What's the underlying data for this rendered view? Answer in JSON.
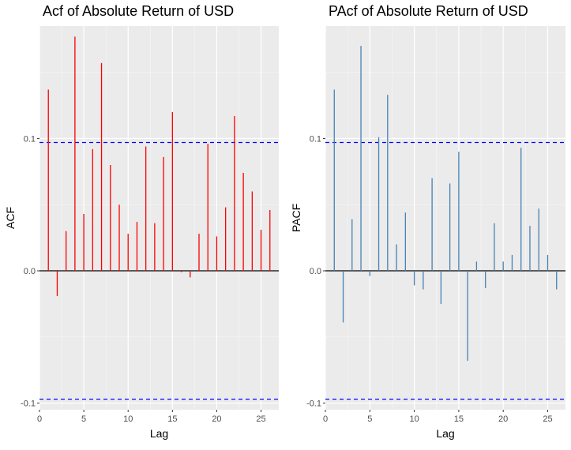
{
  "chart_data": [
    {
      "type": "bar",
      "title": "Acf of Absolute Return of USD",
      "xlabel": "Lag",
      "ylabel": "ACF",
      "xlim": [
        0,
        27
      ],
      "ylim": [
        -0.105,
        0.185
      ],
      "x_ticks": [
        0,
        5,
        10,
        15,
        20,
        25
      ],
      "x_tick_labels": [
        "0",
        "5",
        "10",
        "15",
        "20",
        "25"
      ],
      "y_ticks": [
        -0.1,
        0.0,
        0.1
      ],
      "y_tick_labels": [
        "-0.1",
        "0.0",
        "0.1"
      ],
      "confidence_bounds": [
        0.097,
        -0.097
      ],
      "bar_color": "#ff0000",
      "bound_color": "#0000ff",
      "grid": true,
      "x": [
        1,
        2,
        3,
        4,
        5,
        6,
        7,
        8,
        9,
        10,
        11,
        12,
        13,
        14,
        15,
        16,
        17,
        18,
        19,
        20,
        21,
        22,
        23,
        24,
        25,
        26
      ],
      "values": [
        0.137,
        -0.019,
        0.03,
        0.177,
        0.043,
        0.092,
        0.157,
        0.08,
        0.05,
        0.028,
        0.037,
        0.094,
        0.036,
        0.086,
        0.12,
        -0.001,
        -0.005,
        0.028,
        0.096,
        0.026,
        0.048,
        0.117,
        0.074,
        0.06,
        0.031,
        0.046
      ]
    },
    {
      "type": "bar",
      "title": "PAcf of Absolute Return of USD",
      "xlabel": "Lag",
      "ylabel": "PACF",
      "xlim": [
        0,
        27
      ],
      "ylim": [
        -0.105,
        0.185
      ],
      "x_ticks": [
        0,
        5,
        10,
        15,
        20,
        25
      ],
      "x_tick_labels": [
        "0",
        "5",
        "10",
        "15",
        "20",
        "25"
      ],
      "y_ticks": [
        -0.1,
        0.0,
        0.1
      ],
      "y_tick_labels": [
        "-0.1",
        "0.0",
        "0.1"
      ],
      "confidence_bounds": [
        0.097,
        -0.097
      ],
      "bar_color": "#4682b4",
      "bound_color": "#0000ff",
      "grid": true,
      "x": [
        1,
        2,
        3,
        4,
        5,
        6,
        7,
        8,
        9,
        10,
        11,
        12,
        13,
        14,
        15,
        16,
        17,
        18,
        19,
        20,
        21,
        22,
        23,
        24,
        25,
        26
      ],
      "values": [
        0.137,
        -0.039,
        0.039,
        0.17,
        -0.004,
        0.101,
        0.133,
        0.02,
        0.044,
        -0.011,
        -0.014,
        0.07,
        -0.025,
        0.066,
        0.09,
        -0.068,
        0.007,
        -0.013,
        0.036,
        0.007,
        0.012,
        0.093,
        0.034,
        0.047,
        0.012,
        -0.014
      ]
    }
  ]
}
